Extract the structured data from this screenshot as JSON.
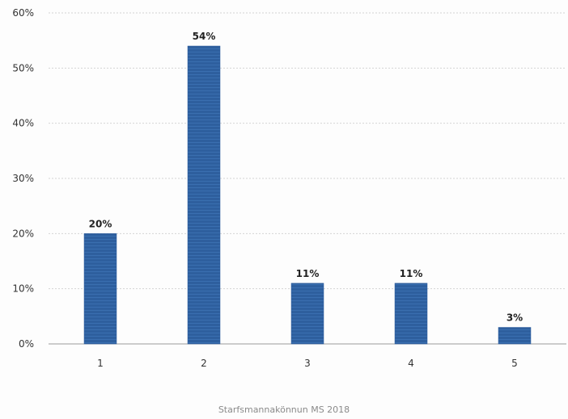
{
  "chart_data": {
    "type": "bar",
    "categories": [
      "1",
      "2",
      "3",
      "4",
      "5"
    ],
    "values": [
      20,
      54,
      11,
      11,
      3
    ],
    "value_labels": [
      "20%",
      "54%",
      "11%",
      "11%",
      "3%"
    ],
    "y_ticks": [
      "0%",
      "10%",
      "20%",
      "30%",
      "40%",
      "50%",
      "60%"
    ],
    "y_unit": "%",
    "ylim": [
      0,
      60
    ],
    "grid": true,
    "legend": "none",
    "bar_color": "#2e5f9e"
  },
  "footer": {
    "caption": "Starfsmannakönnun MS 2018"
  }
}
